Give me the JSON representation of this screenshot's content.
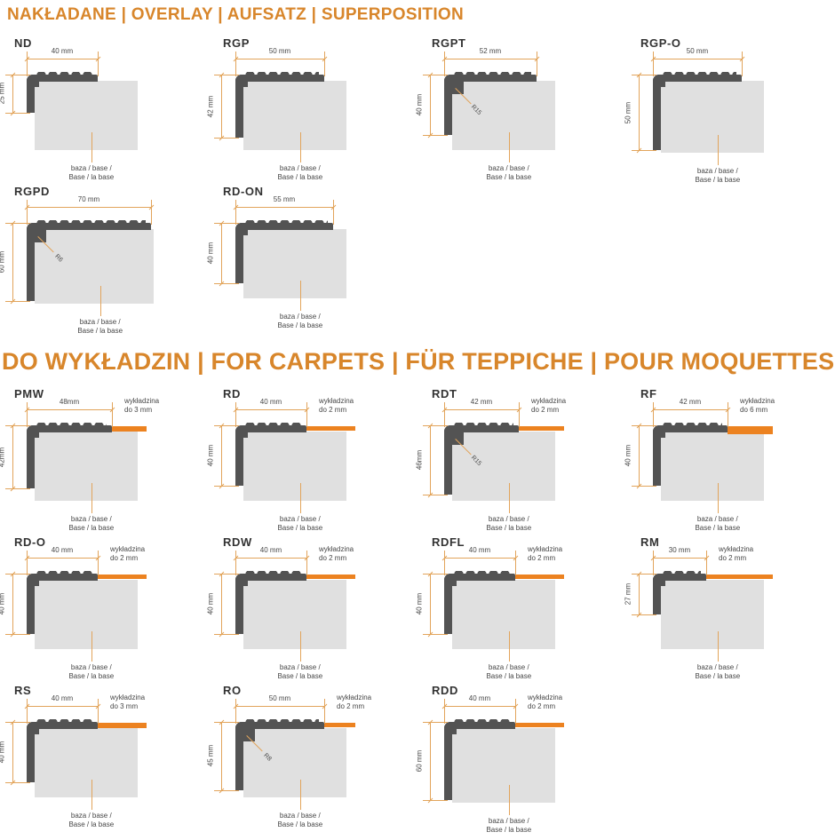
{
  "colors": {
    "header_orange": "#D8862B",
    "dimension_orange": "#E2A45B",
    "carpet_orange": "#EC8220",
    "profile_dark": "#535353",
    "base_gray": "#E0E0E0"
  },
  "base_label": {
    "line1": "baza / base /",
    "line2": "Base / la base"
  },
  "sections": [
    {
      "title": "NAKŁADANE | OVERLAY | AUFSATZ | SUPERPOSITION",
      "profiles": [
        {
          "name": "ND",
          "width_mm": 40,
          "height_mm": 25,
          "width_label": "40 mm",
          "height_label": "25 mm",
          "radius_label": null,
          "carpet_mm": null,
          "carpet_line1": null,
          "carpet_line2": null
        },
        {
          "name": "RGP",
          "width_mm": 50,
          "height_mm": 42,
          "width_label": "50 mm",
          "height_label": "42 mm",
          "radius_label": null,
          "carpet_mm": null,
          "carpet_line1": null,
          "carpet_line2": null
        },
        {
          "name": "RGPT",
          "width_mm": 52,
          "height_mm": 40,
          "width_label": "52 mm",
          "height_label": "40 mm",
          "radius_label": "R15",
          "carpet_mm": null,
          "carpet_line1": null,
          "carpet_line2": null
        },
        {
          "name": "RGP-O",
          "width_mm": 50,
          "height_mm": 50,
          "width_label": "50 mm",
          "height_label": "50 mm",
          "radius_label": null,
          "carpet_mm": null,
          "carpet_line1": null,
          "carpet_line2": null
        },
        {
          "name": "RGPD",
          "width_mm": 70,
          "height_mm": 60,
          "width_label": "70 mm",
          "height_label": "60 mm",
          "radius_label": "R6",
          "carpet_mm": null,
          "carpet_line1": null,
          "carpet_line2": null
        },
        {
          "name": "RD-ON",
          "width_mm": 55,
          "height_mm": 40,
          "width_label": "55 mm",
          "height_label": "40 mm",
          "radius_label": null,
          "carpet_mm": null,
          "carpet_line1": null,
          "carpet_line2": null
        }
      ]
    },
    {
      "title": "DO WYKŁADZIN | FOR CARPETS | FÜR TEPPICHE | POUR MOQUETTES",
      "profiles": [
        {
          "name": "PMW",
          "width_mm": 48,
          "height_mm": 42,
          "width_label": "48mm",
          "height_label": "42mm",
          "radius_label": null,
          "carpet_mm": 3,
          "carpet_line1": "wykładzina",
          "carpet_line2": "do 3 mm"
        },
        {
          "name": "RD",
          "width_mm": 40,
          "height_mm": 40,
          "width_label": "40 mm",
          "height_label": "40 mm",
          "radius_label": null,
          "carpet_mm": 2,
          "carpet_line1": "wykładzina",
          "carpet_line2": "do 2 mm"
        },
        {
          "name": "RDT",
          "width_mm": 42,
          "height_mm": 46,
          "width_label": "42 mm",
          "height_label": "46mm",
          "radius_label": "R15",
          "carpet_mm": 2,
          "carpet_line1": "wykładzina",
          "carpet_line2": "do 2 mm"
        },
        {
          "name": "RF",
          "width_mm": 42,
          "height_mm": 40,
          "width_label": "42 mm",
          "height_label": "40 mm",
          "radius_label": null,
          "carpet_mm": 6,
          "carpet_line1": "wykładzina",
          "carpet_line2": "do 6 mm"
        },
        {
          "name": "RD-O",
          "width_mm": 40,
          "height_mm": 40,
          "width_label": "40 mm",
          "height_label": "40 mm",
          "radius_label": null,
          "carpet_mm": 2,
          "carpet_line1": "wykładzina",
          "carpet_line2": "do 2 mm"
        },
        {
          "name": "RDW",
          "width_mm": 40,
          "height_mm": 40,
          "width_label": "40 mm",
          "height_label": "40 mm",
          "radius_label": null,
          "carpet_mm": 2,
          "carpet_line1": "wykładzina",
          "carpet_line2": "do 2 mm"
        },
        {
          "name": "RDFL",
          "width_mm": 40,
          "height_mm": 40,
          "width_label": "40 mm",
          "height_label": "40 mm",
          "radius_label": null,
          "carpet_mm": 2,
          "carpet_line1": "wykładzina",
          "carpet_line2": "do 2 mm"
        },
        {
          "name": "RM",
          "width_mm": 30,
          "height_mm": 27,
          "width_label": "30 mm",
          "height_label": "27 mm",
          "radius_label": null,
          "carpet_mm": 2,
          "carpet_line1": "wykładzina",
          "carpet_line2": "do 2 mm"
        },
        {
          "name": "RS",
          "width_mm": 40,
          "height_mm": 40,
          "width_label": "40 mm",
          "height_label": "40 mm",
          "radius_label": null,
          "carpet_mm": 3,
          "carpet_line1": "wykładzina",
          "carpet_line2": "do 3 mm"
        },
        {
          "name": "RO",
          "width_mm": 50,
          "height_mm": 45,
          "width_label": "50 mm",
          "height_label": "45 mm",
          "radius_label": "R8",
          "carpet_mm": 2,
          "carpet_line1": "wykładzina",
          "carpet_line2": "do 2 mm"
        },
        {
          "name": "RDD",
          "width_mm": 40,
          "height_mm": 60,
          "width_label": "40 mm",
          "height_label": "60 mm",
          "radius_label": null,
          "carpet_mm": 2,
          "carpet_line1": "wykładzina",
          "carpet_line2": "do 2 mm"
        }
      ]
    }
  ]
}
